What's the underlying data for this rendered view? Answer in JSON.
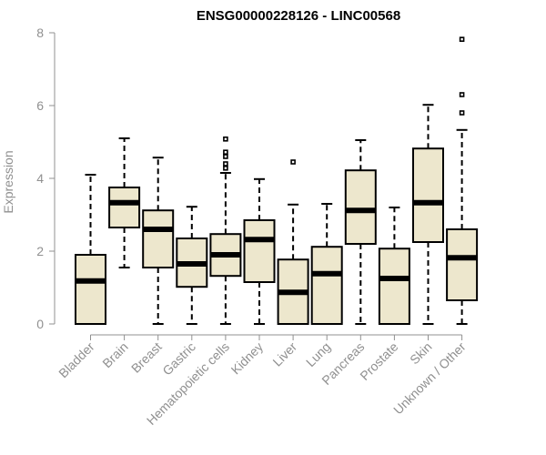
{
  "chart_data": {
    "type": "boxplot",
    "title": "ENSG00000228126 - LINC00568",
    "xlabel": "",
    "ylabel": "Expression",
    "ylim": [
      0,
      8
    ],
    "yticks": [
      0,
      2,
      4,
      6,
      8
    ],
    "grid": false,
    "box_fill": "#ede7cd",
    "categories": [
      "Bladder",
      "Brain",
      "Breast",
      "Gastric",
      "Hematopoietic cells",
      "Kidney",
      "Liver",
      "Lung",
      "Pancreas",
      "Prostate",
      "Skin",
      "Unknown / Other"
    ],
    "boxes": [
      {
        "q1": 0.0,
        "median": 1.18,
        "q3": 1.9,
        "whisker_low": 0.0,
        "whisker_high": 4.1,
        "outliers": []
      },
      {
        "q1": 2.65,
        "median": 3.33,
        "q3": 3.75,
        "whisker_low": 1.55,
        "whisker_high": 5.1,
        "outliers": []
      },
      {
        "q1": 1.55,
        "median": 2.6,
        "q3": 3.12,
        "whisker_low": 0.0,
        "whisker_high": 4.57,
        "outliers": []
      },
      {
        "q1": 1.02,
        "median": 1.65,
        "q3": 2.35,
        "whisker_low": 0.0,
        "whisker_high": 3.22,
        "outliers": []
      },
      {
        "q1": 1.32,
        "median": 1.9,
        "q3": 2.47,
        "whisker_low": 0.0,
        "whisker_high": 4.15,
        "outliers": [
          4.28,
          4.4,
          4.6,
          4.72,
          5.08
        ]
      },
      {
        "q1": 1.15,
        "median": 2.32,
        "q3": 2.85,
        "whisker_low": 0.0,
        "whisker_high": 3.98,
        "outliers": []
      },
      {
        "q1": 0.0,
        "median": 0.87,
        "q3": 1.77,
        "whisker_low": 0.0,
        "whisker_high": 3.28,
        "outliers": [
          4.45
        ]
      },
      {
        "q1": 0.0,
        "median": 1.38,
        "q3": 2.12,
        "whisker_low": 0.0,
        "whisker_high": 3.3,
        "outliers": []
      },
      {
        "q1": 2.2,
        "median": 3.12,
        "q3": 4.22,
        "whisker_low": 0.0,
        "whisker_high": 5.05,
        "outliers": []
      },
      {
        "q1": 0.0,
        "median": 1.25,
        "q3": 2.07,
        "whisker_low": 0.0,
        "whisker_high": 3.2,
        "outliers": []
      },
      {
        "q1": 2.25,
        "median": 3.33,
        "q3": 4.82,
        "whisker_low": 0.0,
        "whisker_high": 6.02,
        "outliers": []
      },
      {
        "q1": 0.65,
        "median": 1.82,
        "q3": 2.6,
        "whisker_low": 0.0,
        "whisker_high": 5.33,
        "outliers": [
          5.8,
          6.3,
          7.82
        ]
      }
    ]
  }
}
